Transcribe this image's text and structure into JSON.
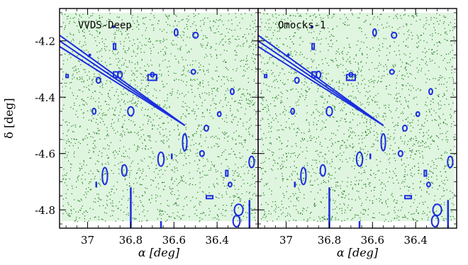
{
  "chart_data": [
    {
      "type": "scatter",
      "title": "VVDS-Deep",
      "xlabel": "α [deg]",
      "ylabel": "δ [deg]",
      "xlim": [
        37.13,
        36.21
      ],
      "ylim": [
        -4.865,
        -4.085
      ],
      "x_ticks": [
        36.4,
        36.6,
        36.8,
        37
      ],
      "x_tick_labels": [
        "36.4",
        "36.6",
        "36.8",
        "37"
      ],
      "y_ticks": [
        -4.2,
        -4.4,
        -4.6,
        -4.8
      ],
      "y_tick_labels": [
        "-4.2",
        "-4.4",
        "-4.6",
        "-4.8"
      ],
      "colors": {
        "points": "#1a7a1a",
        "coverage": "#dff5df",
        "masks": "#1b2de0"
      },
      "coverage_region": {
        "x": [
          36.22,
          37.12
        ],
        "y": [
          -4.84,
          -4.1
        ]
      },
      "series": [
        {
          "type": "scatter",
          "description_values": "dense uniform galaxy distribution within coverage",
          "count": 2200
        }
      ],
      "masks": [
        {
          "shape": "streak",
          "points": [
            [
              37.13,
              -4.18
            ],
            [
              36.55,
              -4.5
            ]
          ]
        },
        {
          "shape": "streak",
          "points": [
            [
              37.13,
              -4.2
            ],
            [
              36.55,
              -4.5
            ]
          ]
        },
        {
          "shape": "streak",
          "points": [
            [
              37.13,
              -4.22
            ],
            [
              36.55,
              -4.5
            ]
          ]
        },
        {
          "shape": "ellipse",
          "center": [
            36.59,
            -4.17
          ],
          "rx": 0.008,
          "ry": 0.012
        },
        {
          "shape": "ellipse",
          "center": [
            36.66,
            -4.62
          ],
          "rx": 0.014,
          "ry": 0.025
        },
        {
          "shape": "ellipse",
          "center": [
            36.51,
            -4.31
          ],
          "rx": 0.01,
          "ry": 0.008
        },
        {
          "shape": "ellipse",
          "center": [
            36.8,
            -4.45
          ],
          "rx": 0.014,
          "ry": 0.016
        },
        {
          "shape": "ellipse",
          "center": [
            36.7,
            -4.32
          ],
          "rx": 0.008,
          "ry": 0.008
        },
        {
          "shape": "ellipse",
          "center": [
            36.85,
            -4.32
          ],
          "rx": 0.01,
          "ry": 0.012
        },
        {
          "shape": "ellipse",
          "center": [
            36.55,
            -4.56
          ],
          "rx": 0.01,
          "ry": 0.03
        },
        {
          "shape": "ellipse",
          "center": [
            36.83,
            -4.66
          ],
          "rx": 0.012,
          "ry": 0.02
        },
        {
          "shape": "ellipse",
          "center": [
            36.92,
            -4.68
          ],
          "rx": 0.012,
          "ry": 0.03
        },
        {
          "shape": "ellipse",
          "center": [
            36.31,
            -4.84
          ],
          "rx": 0.016,
          "ry": 0.02
        },
        {
          "shape": "ellipse",
          "center": [
            36.45,
            -4.51
          ],
          "rx": 0.01,
          "ry": 0.01
        },
        {
          "shape": "ellipse",
          "center": [
            36.47,
            -4.6
          ],
          "rx": 0.01,
          "ry": 0.01
        },
        {
          "shape": "ellipse",
          "center": [
            36.39,
            -4.46
          ],
          "rx": 0.008,
          "ry": 0.008
        },
        {
          "shape": "ellipse",
          "center": [
            36.5,
            -4.18
          ],
          "rx": 0.012,
          "ry": 0.01
        },
        {
          "shape": "ellipse",
          "center": [
            36.33,
            -4.38
          ],
          "rx": 0.008,
          "ry": 0.01
        },
        {
          "shape": "ellipse",
          "center": [
            36.34,
            -4.71
          ],
          "rx": 0.008,
          "ry": 0.008
        },
        {
          "shape": "ellipse",
          "center": [
            36.95,
            -4.34
          ],
          "rx": 0.01,
          "ry": 0.01
        },
        {
          "shape": "ellipse",
          "center": [
            36.97,
            -4.45
          ],
          "rx": 0.008,
          "ry": 0.01
        },
        {
          "shape": "ellipse",
          "center": [
            36.24,
            -4.63
          ],
          "rx": 0.012,
          "ry": 0.02
        },
        {
          "shape": "ellipse",
          "center": [
            36.3,
            -4.8
          ],
          "rx": 0.02,
          "ry": 0.02
        },
        {
          "shape": "rect",
          "x": [
            36.68,
            36.72
          ],
          "y": [
            -4.34,
            -4.32
          ]
        },
        {
          "shape": "rect",
          "x": [
            36.86,
            36.88
          ],
          "y": [
            -4.33,
            -4.31
          ]
        },
        {
          "shape": "rect",
          "x": [
            37.09,
            37.1
          ],
          "y": [
            -4.33,
            -4.32
          ]
        },
        {
          "shape": "rect",
          "x": [
            36.87,
            36.88
          ],
          "y": [
            -4.23,
            -4.21
          ]
        },
        {
          "shape": "rect",
          "x": [
            36.42,
            36.45
          ],
          "y": [
            -4.76,
            -4.75
          ]
        },
        {
          "shape": "rect",
          "x": [
            36.35,
            36.36
          ],
          "y": [
            -4.68,
            -4.66
          ]
        },
        {
          "shape": "vline",
          "x": 36.8,
          "y": [
            -4.72,
            -4.865
          ]
        },
        {
          "shape": "vline",
          "x": 36.25,
          "y": [
            -4.765,
            -4.865
          ]
        },
        {
          "shape": "vline",
          "x": 36.66,
          "y": [
            -4.84,
            -4.865
          ]
        },
        {
          "shape": "vline",
          "x": 36.61,
          "y": [
            -4.6,
            -4.62
          ]
        },
        {
          "shape": "vline",
          "x": 36.96,
          "y": [
            -4.7,
            -4.72
          ]
        },
        {
          "shape": "dot",
          "center": [
            36.88,
            -4.15
          ]
        },
        {
          "shape": "dot",
          "center": [
            36.99,
            -4.25
          ]
        }
      ]
    },
    {
      "type": "scatter",
      "title": "Omocks-1",
      "xlabel": "α [deg]",
      "ylabel": "",
      "xlim": [
        37.13,
        36.21
      ],
      "ylim": [
        -4.865,
        -4.085
      ],
      "x_ticks": [
        36.4,
        36.6,
        36.8,
        37
      ],
      "x_tick_labels": [
        "36.4",
        "36.6",
        "36.8",
        "37"
      ],
      "y_ticks": [
        -4.2,
        -4.4,
        -4.6,
        -4.8
      ],
      "colors": {
        "points": "#1a7a1a",
        "coverage": "#dff5df",
        "masks": "#1b2de0"
      },
      "coverage_region": {
        "x": [
          36.22,
          37.12
        ],
        "y": [
          -4.84,
          -4.1
        ]
      },
      "series": [
        {
          "type": "scatter",
          "description_values": "mock galaxy distribution within coverage",
          "count": 2200
        }
      ],
      "masks": "same as VVDS-Deep"
    }
  ]
}
